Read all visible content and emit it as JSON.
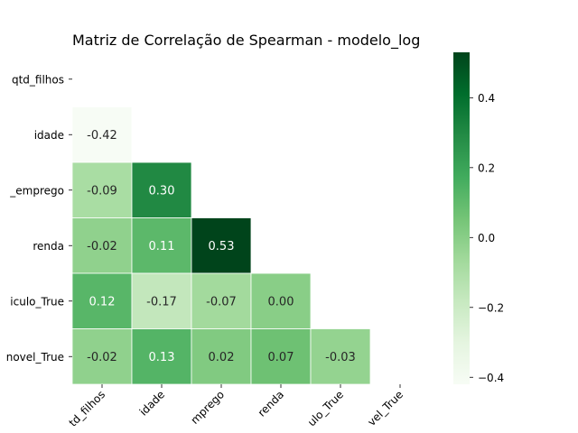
{
  "chart_data": {
    "type": "heatmap",
    "title": "Matriz de Correlação de Spearman - modelo_log",
    "xlabel": "",
    "ylabel": "",
    "mask": "upper-triangle",
    "colormap": "Greens",
    "colorbar": {
      "min": -0.42,
      "max": 0.53,
      "ticks": [
        0.4,
        0.2,
        0.0,
        -0.2,
        -0.4
      ],
      "tick_labels": [
        "0.4",
        "0.2",
        "0.0",
        "−0.2",
        "−0.4"
      ],
      "position": "right"
    },
    "row_labels": [
      "qtd_filhos",
      "idade",
      "_emprego",
      "renda",
      "iculo_True",
      "novel_True"
    ],
    "col_labels": [
      "td_filhos",
      "idade",
      "mprego",
      "renda",
      "ulo_True",
      "vel_True"
    ],
    "matrix": [
      [
        null,
        null,
        null,
        null,
        null,
        null
      ],
      [
        -0.42,
        null,
        null,
        null,
        null,
        null
      ],
      [
        -0.09,
        0.3,
        null,
        null,
        null,
        null
      ],
      [
        -0.02,
        0.11,
        0.53,
        null,
        null,
        null
      ],
      [
        0.12,
        -0.17,
        -0.07,
        0.0,
        null,
        null
      ],
      [
        -0.02,
        0.13,
        0.02,
        0.07,
        -0.03,
        null
      ]
    ],
    "cell_labels": [
      [
        null,
        null,
        null,
        null,
        null,
        null
      ],
      [
        "-0.42",
        null,
        null,
        null,
        null,
        null
      ],
      [
        "-0.09",
        "0.30",
        null,
        null,
        null,
        null
      ],
      [
        "-0.02",
        "0.11",
        "0.53",
        null,
        null,
        null
      ],
      [
        "0.12",
        "-0.17",
        "-0.07",
        "0.00",
        null,
        null
      ],
      [
        "-0.02",
        "0.13",
        "0.02",
        "0.07",
        "-0.03",
        null
      ]
    ]
  }
}
